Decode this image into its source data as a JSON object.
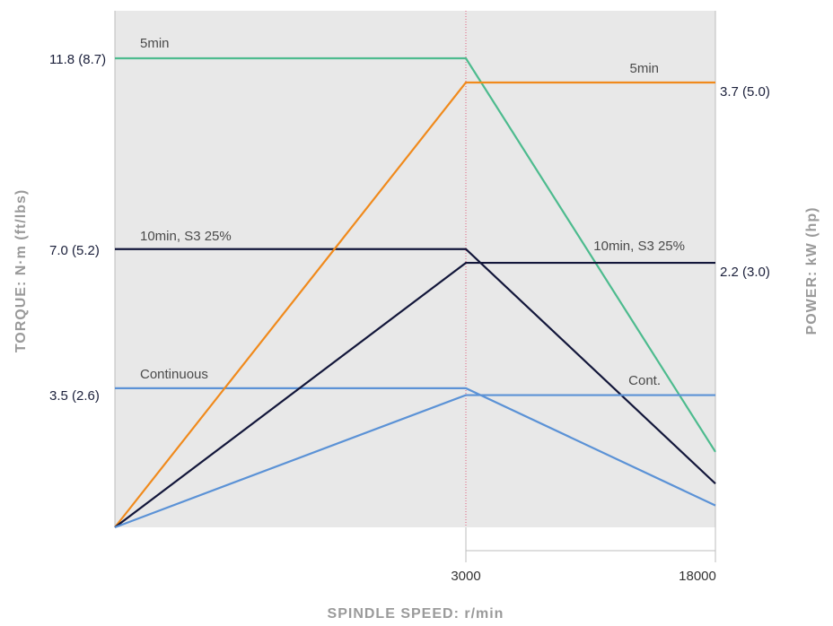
{
  "chart_data": {
    "type": "line",
    "xlabel": "SPINDLE SPEED: r/min",
    "ylabel_left": "TORQUE: N·m (ft/lbs)",
    "ylabel_right": "POWER: kW (hp)",
    "x_ticks": [
      {
        "label": "3000"
      },
      {
        "label": "18000"
      }
    ],
    "left_ticks": [
      {
        "label": "11.8 (8.7)",
        "value": 11.8
      },
      {
        "label": "7.0 (5.2)",
        "value": 7.0
      },
      {
        "label": "3.5 (2.6)",
        "value": 3.5
      }
    ],
    "right_ticks": [
      {
        "label": "3.7 (5.0)",
        "value": 3.7
      },
      {
        "label": "2.2 (3.0)",
        "value": 2.2
      }
    ],
    "grid": false,
    "series": [
      {
        "name": "5min",
        "kind": "torque",
        "color": "#4dbb8e",
        "points": [
          [
            0,
            11.8
          ],
          [
            3000,
            11.8
          ],
          [
            18000,
            1.9
          ]
        ]
      },
      {
        "name": "10min, S3 25%",
        "kind": "torque",
        "color": "#12163a",
        "points": [
          [
            0,
            7.0
          ],
          [
            3000,
            7.0
          ],
          [
            18000,
            1.1
          ]
        ]
      },
      {
        "name": "Continuous",
        "kind": "torque",
        "color": "#5b92d6",
        "points": [
          [
            0,
            3.5
          ],
          [
            3000,
            3.5
          ],
          [
            18000,
            0.55
          ]
        ]
      },
      {
        "name": "5min",
        "kind": "power",
        "color": "#f08a1c",
        "points": [
          [
            0,
            0
          ],
          [
            3000,
            3.7
          ],
          [
            18000,
            3.7
          ]
        ]
      },
      {
        "name": "10min, S3 25%",
        "kind": "power",
        "color": "#12163a",
        "points": [
          [
            0,
            0
          ],
          [
            3000,
            2.2
          ],
          [
            18000,
            2.2
          ]
        ]
      },
      {
        "name": "Cont.",
        "kind": "power",
        "color": "#5b92d6",
        "points": [
          [
            0,
            0
          ],
          [
            3000,
            1.1
          ],
          [
            18000,
            1.1
          ]
        ]
      }
    ],
    "reference_line": {
      "x": 3000,
      "color": "#e0607e",
      "style": "dotted"
    }
  }
}
